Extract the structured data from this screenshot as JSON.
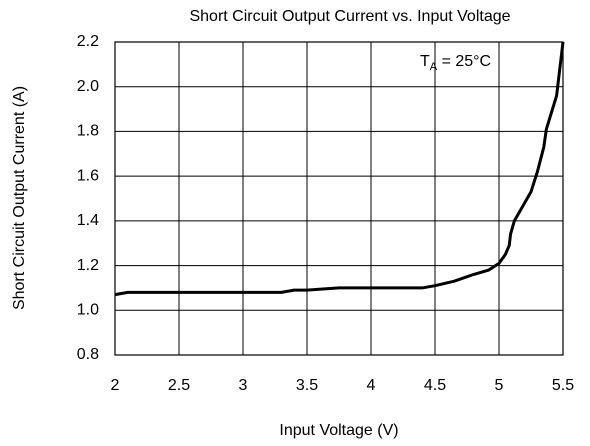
{
  "chart_data": {
    "type": "line",
    "title": "Short Circuit Output Current vs. Input Voltage",
    "xlabel": "Input Voltage (V)",
    "ylabel": "Short Circuit Output Current (A)",
    "annotation": {
      "text": "T",
      "subscript": "A",
      "suffix": " = 25°C"
    },
    "x": [
      2,
      2.1,
      2.5,
      3,
      3.3,
      3.4,
      3.5,
      3.75,
      4,
      4.4,
      4.5,
      4.65,
      4.8,
      4.92,
      5.0,
      5.05,
      5.08,
      5.09,
      5.12,
      5.2,
      5.25,
      5.3,
      5.35,
      5.37,
      5.45,
      5.5
    ],
    "series": [
      {
        "name": "Short Circuit Output Current",
        "color": "#000000",
        "values": [
          1.07,
          1.08,
          1.08,
          1.08,
          1.08,
          1.09,
          1.09,
          1.1,
          1.1,
          1.1,
          1.11,
          1.13,
          1.16,
          1.18,
          1.21,
          1.25,
          1.29,
          1.34,
          1.4,
          1.48,
          1.53,
          1.62,
          1.73,
          1.81,
          1.96,
          2.2
        ]
      }
    ],
    "xlim": [
      2,
      5.5
    ],
    "xticks": [
      2,
      2.5,
      3,
      3.5,
      4,
      4.5,
      5,
      5.5
    ],
    "ylim": [
      0.8,
      2.2
    ],
    "yticks": [
      0.8,
      {
        "value": 1,
        "label": "1.0"
      },
      1.2,
      1.4,
      1.6,
      1.8,
      {
        "value": 2,
        "label": "2.0"
      },
      2.2
    ],
    "grid": true
  }
}
